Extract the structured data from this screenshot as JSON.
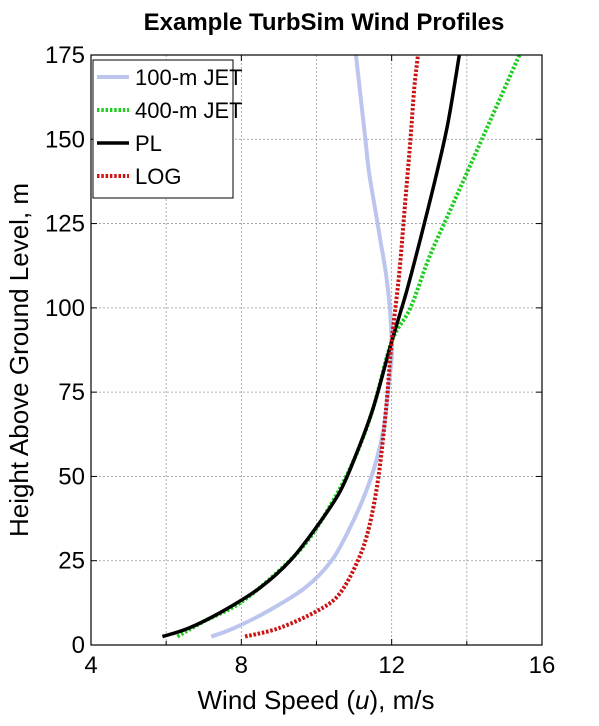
{
  "chart_data": {
    "type": "line",
    "title": "Example TurbSim Wind Profiles",
    "xlabel_parts": [
      "Wind Speed (",
      "u",
      "), m/s"
    ],
    "ylabel": "Height Above Ground Level, m",
    "xlim": [
      4,
      16
    ],
    "ylim": [
      0,
      175
    ],
    "xticks": [
      4,
      8,
      12,
      16
    ],
    "yticks": [
      0,
      25,
      50,
      75,
      100,
      125,
      150,
      175
    ],
    "grid": true,
    "legend_position": "top-left",
    "series": [
      {
        "name": "100-m JET",
        "color": "#b8c2ec",
        "dash": "solid-light",
        "points": [
          [
            7.2,
            2.5
          ],
          [
            7.8,
            5
          ],
          [
            8.7,
            10
          ],
          [
            9.7,
            17
          ],
          [
            10.4,
            25
          ],
          [
            10.9,
            35
          ],
          [
            11.3,
            45
          ],
          [
            11.6,
            55
          ],
          [
            11.8,
            65
          ],
          [
            11.9,
            75
          ],
          [
            12.0,
            85
          ],
          [
            12.0,
            90
          ],
          [
            11.95,
            100
          ],
          [
            11.85,
            110
          ],
          [
            11.7,
            120
          ],
          [
            11.55,
            130
          ],
          [
            11.4,
            140
          ],
          [
            11.3,
            150
          ],
          [
            11.2,
            160
          ],
          [
            11.1,
            170
          ],
          [
            11.05,
            175
          ]
        ]
      },
      {
        "name": "400-m JET",
        "color": "#22cc22",
        "dash": "dotted",
        "points": [
          [
            6.3,
            2.5
          ],
          [
            7.0,
            7
          ],
          [
            7.9,
            12
          ],
          [
            8.8,
            20
          ],
          [
            9.7,
            30
          ],
          [
            10.4,
            42
          ],
          [
            11.0,
            55
          ],
          [
            11.5,
            70
          ],
          [
            12.0,
            90
          ],
          [
            12.5,
            100
          ],
          [
            13.0,
            115
          ],
          [
            13.6,
            130
          ],
          [
            14.2,
            145
          ],
          [
            14.8,
            160
          ],
          [
            15.4,
            175
          ]
        ]
      },
      {
        "name": "PL",
        "color": "#000000",
        "dash": "solid",
        "points": [
          [
            5.9,
            2.5
          ],
          [
            6.6,
            5
          ],
          [
            7.5,
            10
          ],
          [
            8.5,
            17
          ],
          [
            9.3,
            25
          ],
          [
            10.0,
            35
          ],
          [
            10.6,
            45
          ],
          [
            11.0,
            55
          ],
          [
            11.5,
            70
          ],
          [
            12.0,
            90
          ],
          [
            12.4,
            105
          ],
          [
            12.8,
            122
          ],
          [
            13.2,
            140
          ],
          [
            13.5,
            155
          ],
          [
            13.8,
            175
          ]
        ]
      },
      {
        "name": "LOG",
        "color": "#cc1111",
        "dash": "dotted",
        "points": [
          [
            8.1,
            2.5
          ],
          [
            9.0,
            5
          ],
          [
            10.0,
            10
          ],
          [
            10.6,
            15
          ],
          [
            11.1,
            25
          ],
          [
            11.4,
            35
          ],
          [
            11.65,
            50
          ],
          [
            11.85,
            70
          ],
          [
            12.0,
            90
          ],
          [
            12.2,
            110
          ],
          [
            12.35,
            130
          ],
          [
            12.5,
            150
          ],
          [
            12.6,
            165
          ],
          [
            12.7,
            175
          ]
        ]
      }
    ]
  }
}
